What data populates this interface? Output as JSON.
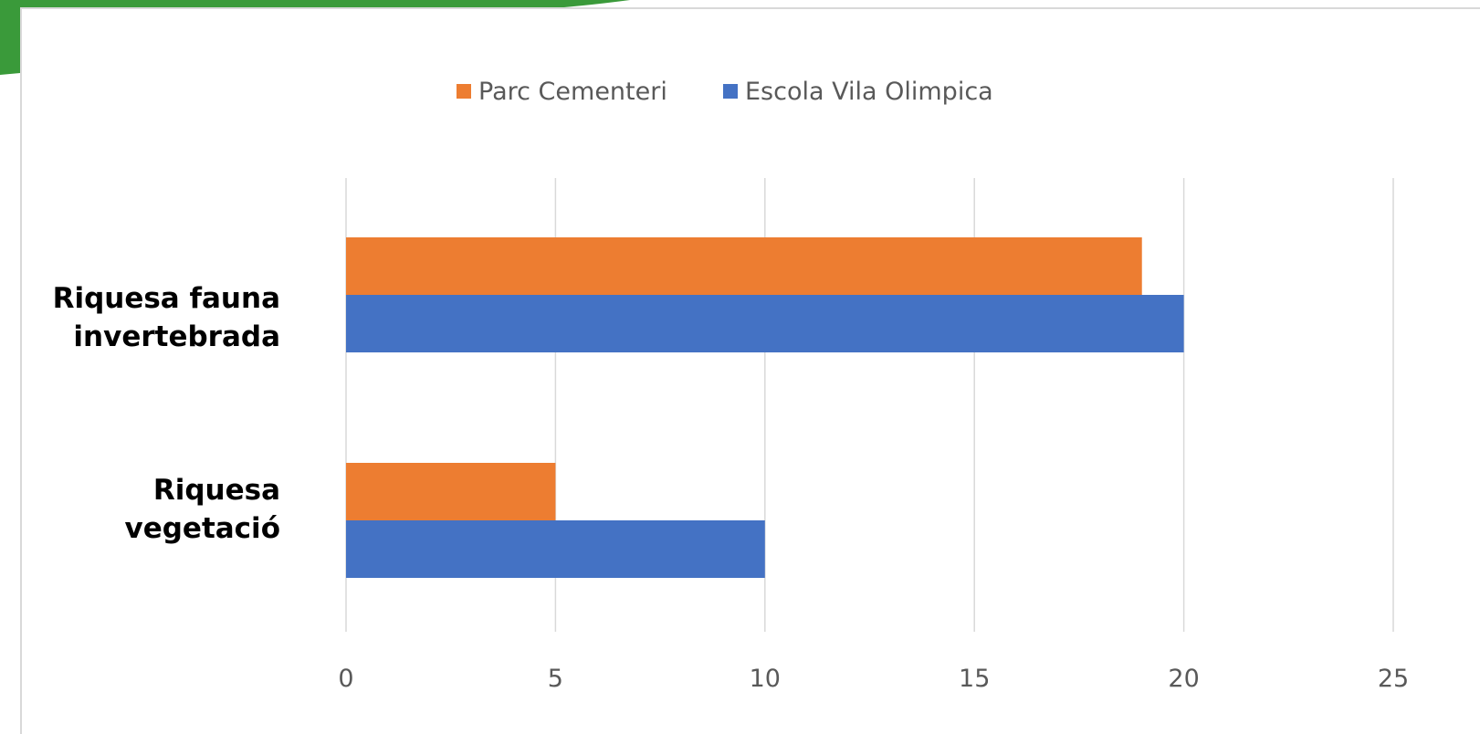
{
  "chart_data": {
    "type": "bar",
    "orientation": "horizontal",
    "categories": [
      "Riquesa fauna invertebrada",
      "Riquesa vegetació"
    ],
    "category_lines": [
      [
        "Riquesa fauna",
        "invertebrada"
      ],
      [
        "Riquesa",
        "vegetació"
      ]
    ],
    "series": [
      {
        "name": "Parc Cementeri",
        "color": "#ED7D31",
        "values": [
          19,
          5
        ]
      },
      {
        "name": "Escola Vila Olimpica",
        "color": "#4472C4",
        "values": [
          20,
          10
        ]
      }
    ],
    "xlim": [
      0,
      25
    ],
    "xticks": [
      "0",
      "5",
      "10",
      "15",
      "20",
      "25"
    ],
    "xtick_values": [
      0,
      5,
      10,
      15,
      20,
      25
    ],
    "grid": true,
    "legend_position": "top-center",
    "title": "",
    "xlabel": "",
    "ylabel": ""
  },
  "accent_color": "#3A9A3A"
}
